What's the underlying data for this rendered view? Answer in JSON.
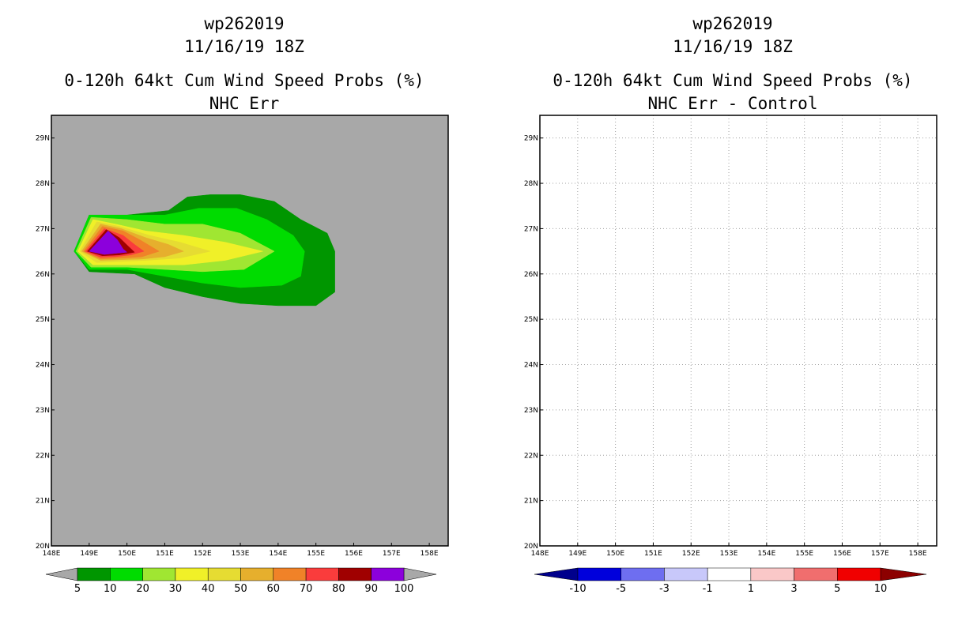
{
  "chart_data": [
    {
      "type": "heatmap",
      "storm_id": "wp262019",
      "datetime": "11/16/19 18Z",
      "title": "0-120h 64kt Cum Wind Speed Probs (%)",
      "subtitle": "NHC Err",
      "xlabel": "",
      "ylabel": "",
      "xlim": [
        148,
        158.5
      ],
      "ylim": [
        20,
        29.5
      ],
      "x_ticks": [
        "148E",
        "149E",
        "150E",
        "151E",
        "152E",
        "153E",
        "154E",
        "155E",
        "156E",
        "157E",
        "158E"
      ],
      "y_ticks": [
        "20N",
        "21N",
        "22N",
        "23N",
        "24N",
        "25N",
        "26N",
        "27N",
        "28N",
        "29N"
      ],
      "grid": false,
      "background_color": "#a8a8a8",
      "colorbar": {
        "labels": [
          "5",
          "10",
          "20",
          "30",
          "40",
          "50",
          "60",
          "70",
          "80",
          "90",
          "100"
        ],
        "colors": [
          "#009600",
          "#00dc00",
          "#a0e632",
          "#f0f028",
          "#e6dc32",
          "#e6af2d",
          "#f08228",
          "#fa3c3c",
          "#a00000",
          "#8c00dc"
        ],
        "end_colors": [
          "#a8a8a8",
          "#a8a8a8"
        ]
      },
      "contours": [
        {
          "level": 5,
          "color": "#009600",
          "points": [
            [
              148.6,
              26.5
            ],
            [
              149.0,
              27.3
            ],
            [
              150.0,
              27.3
            ],
            [
              151.1,
              27.4
            ],
            [
              151.6,
              27.7
            ],
            [
              152.2,
              27.75
            ],
            [
              153.0,
              27.75
            ],
            [
              153.9,
              27.6
            ],
            [
              154.6,
              27.2
            ],
            [
              155.3,
              26.9
            ],
            [
              155.5,
              26.5
            ],
            [
              155.5,
              25.6
            ],
            [
              155.0,
              25.3
            ],
            [
              154.0,
              25.3
            ],
            [
              153.0,
              25.35
            ],
            [
              152.0,
              25.5
            ],
            [
              151.0,
              25.7
            ],
            [
              150.2,
              26.0
            ],
            [
              149.0,
              26.05
            ]
          ]
        },
        {
          "level": 10,
          "color": "#00dc00",
          "points": [
            [
              148.6,
              26.5
            ],
            [
              149.0,
              27.3
            ],
            [
              150.0,
              27.3
            ],
            [
              151.0,
              27.3
            ],
            [
              151.9,
              27.45
            ],
            [
              152.9,
              27.45
            ],
            [
              153.7,
              27.2
            ],
            [
              154.4,
              26.85
            ],
            [
              154.7,
              26.5
            ],
            [
              154.6,
              25.95
            ],
            [
              154.1,
              25.75
            ],
            [
              153.0,
              25.7
            ],
            [
              152.0,
              25.8
            ],
            [
              151.0,
              25.95
            ],
            [
              150.0,
              26.1
            ],
            [
              149.0,
              26.1
            ]
          ]
        },
        {
          "level": 20,
          "color": "#a0e632",
          "points": [
            [
              148.65,
              26.5
            ],
            [
              149.05,
              27.25
            ],
            [
              150.0,
              27.2
            ],
            [
              151.0,
              27.1
            ],
            [
              152.0,
              27.1
            ],
            [
              153.0,
              26.9
            ],
            [
              153.9,
              26.5
            ],
            [
              153.1,
              26.1
            ],
            [
              152.0,
              26.05
            ],
            [
              151.0,
              26.1
            ],
            [
              150.0,
              26.15
            ],
            [
              149.05,
              26.15
            ]
          ]
        },
        {
          "level": 30,
          "color": "#f0f028",
          "points": [
            [
              148.7,
              26.5
            ],
            [
              149.1,
              27.2
            ],
            [
              149.7,
              27.1
            ],
            [
              150.5,
              26.95
            ],
            [
              151.5,
              26.85
            ],
            [
              152.6,
              26.7
            ],
            [
              153.6,
              26.5
            ],
            [
              152.6,
              26.3
            ],
            [
              151.5,
              26.2
            ],
            [
              150.5,
              26.2
            ],
            [
              149.1,
              26.2
            ]
          ]
        },
        {
          "level": 40,
          "color": "#e6dc32",
          "points": [
            [
              148.75,
              26.5
            ],
            [
              149.2,
              27.15
            ],
            [
              149.8,
              27.05
            ],
            [
              150.6,
              26.85
            ],
            [
              151.4,
              26.7
            ],
            [
              152.2,
              26.5
            ],
            [
              151.4,
              26.35
            ],
            [
              150.5,
              26.3
            ],
            [
              149.2,
              26.25
            ]
          ]
        },
        {
          "level": 50,
          "color": "#e6af2d",
          "points": [
            [
              148.8,
              26.5
            ],
            [
              149.3,
              27.1
            ],
            [
              149.85,
              27.0
            ],
            [
              150.5,
              26.8
            ],
            [
              151.1,
              26.65
            ],
            [
              151.5,
              26.5
            ],
            [
              151.0,
              26.38
            ],
            [
              150.4,
              26.33
            ],
            [
              149.3,
              26.3
            ]
          ]
        },
        {
          "level": 60,
          "color": "#f08228",
          "points": [
            [
              148.85,
              26.5
            ],
            [
              149.35,
              27.05
            ],
            [
              149.9,
              26.95
            ],
            [
              150.35,
              26.75
            ],
            [
              150.85,
              26.5
            ],
            [
              150.4,
              26.38
            ],
            [
              149.9,
              26.35
            ],
            [
              149.3,
              26.33
            ]
          ]
        },
        {
          "level": 70,
          "color": "#fa3c3c",
          "points": [
            [
              148.9,
              26.5
            ],
            [
              149.4,
              27.0
            ],
            [
              149.9,
              26.85
            ],
            [
              150.2,
              26.65
            ],
            [
              150.45,
              26.5
            ],
            [
              150.1,
              26.42
            ],
            [
              149.7,
              26.38
            ],
            [
              149.3,
              26.37
            ]
          ]
        },
        {
          "level": 80,
          "color": "#a00000",
          "points": [
            [
              148.95,
              26.5
            ],
            [
              149.45,
              26.98
            ],
            [
              149.8,
              26.8
            ],
            [
              150.05,
              26.6
            ],
            [
              150.2,
              26.48
            ],
            [
              149.8,
              26.42
            ],
            [
              149.35,
              26.4
            ]
          ]
        },
        {
          "level": 90,
          "color": "#8c00dc",
          "points": [
            [
              149.0,
              26.5
            ],
            [
              149.5,
              26.95
            ],
            [
              149.75,
              26.75
            ],
            [
              149.9,
              26.55
            ],
            [
              150.0,
              26.48
            ],
            [
              149.4,
              26.43
            ]
          ]
        }
      ]
    },
    {
      "type": "heatmap",
      "storm_id": "wp262019",
      "datetime": "11/16/19 18Z",
      "title": "0-120h 64kt Cum Wind Speed Probs (%)",
      "subtitle": "NHC Err - Control",
      "xlabel": "",
      "ylabel": "",
      "xlim": [
        148,
        158.5
      ],
      "ylim": [
        20,
        29.5
      ],
      "x_ticks": [
        "148E",
        "149E",
        "150E",
        "151E",
        "152E",
        "153E",
        "154E",
        "155E",
        "156E",
        "157E",
        "158E"
      ],
      "y_ticks": [
        "20N",
        "21N",
        "22N",
        "23N",
        "24N",
        "25N",
        "26N",
        "27N",
        "28N",
        "29N"
      ],
      "grid": true,
      "background_color": "#ffffff",
      "colorbar": {
        "labels": [
          "-10",
          "-5",
          "-3",
          "-1",
          "1",
          "3",
          "5",
          "10"
        ],
        "colors": [
          "#0000dc",
          "#6e6ef0",
          "#c8c8fa",
          "#ffffff",
          "#fac8c8",
          "#f06e6e",
          "#f00000"
        ],
        "end_colors": [
          "#00008c",
          "#8c0000"
        ]
      },
      "contours": []
    }
  ]
}
